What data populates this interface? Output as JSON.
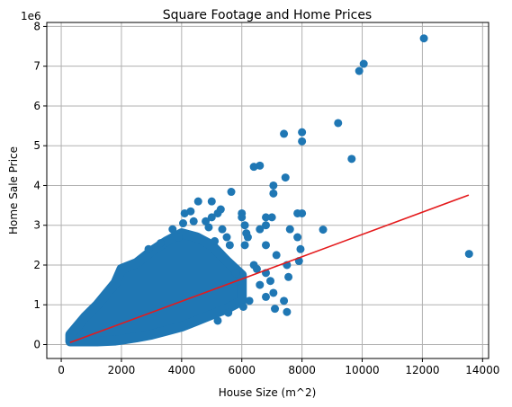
{
  "chart_data": {
    "type": "scatter",
    "title": "Square Footage and Home Prices",
    "xlabel": "House Size (m^2)",
    "ylabel": "Home Sale Price",
    "y_offset_label": "1e6",
    "xlim": [
      -480,
      14200
    ],
    "ylim": [
      -0.35,
      8.1
    ],
    "y_scale": 1000000,
    "xticks": [
      0,
      2000,
      4000,
      6000,
      8000,
      10000,
      12000,
      14000
    ],
    "yticks": [
      0,
      1,
      2,
      3,
      4,
      5,
      6,
      7,
      8
    ],
    "grid": true,
    "colors": {
      "points": "#1f77b4",
      "fit_line": "#e41a1c"
    },
    "fit_line": {
      "x": [
        290,
        13540
      ],
      "y": [
        0.05,
        3.76
      ]
    },
    "dense_cloud_bands": [
      {
        "x": 300,
        "y_low": 0.08,
        "y_high": 0.25
      },
      {
        "x": 800,
        "y_low": 0.08,
        "y_high": 0.7
      },
      {
        "x": 1200,
        "y_low": 0.08,
        "y_high": 1.0
      },
      {
        "x": 1800,
        "y_low": 0.1,
        "y_high": 1.55
      },
      {
        "x": 2000,
        "y_low": 0.12,
        "y_high": 1.9
      },
      {
        "x": 2500,
        "y_low": 0.18,
        "y_high": 2.05
      },
      {
        "x": 3000,
        "y_low": 0.25,
        "y_high": 2.35
      },
      {
        "x": 3500,
        "y_low": 0.35,
        "y_high": 2.6
      },
      {
        "x": 4000,
        "y_low": 0.45,
        "y_high": 2.8
      },
      {
        "x": 4500,
        "y_low": 0.6,
        "y_high": 2.7
      },
      {
        "x": 5000,
        "y_low": 0.75,
        "y_high": 2.5
      },
      {
        "x": 5500,
        "y_low": 0.9,
        "y_high": 2.1
      },
      {
        "x": 6000,
        "y_low": 1.1,
        "y_high": 1.75
      }
    ],
    "points": [
      {
        "x": 12050,
        "y": 7.7
      },
      {
        "x": 10050,
        "y": 7.06
      },
      {
        "x": 9900,
        "y": 6.88
      },
      {
        "x": 9200,
        "y": 5.57
      },
      {
        "x": 8000,
        "y": 5.34
      },
      {
        "x": 7400,
        "y": 5.3
      },
      {
        "x": 8000,
        "y": 5.11
      },
      {
        "x": 9650,
        "y": 4.67
      },
      {
        "x": 6600,
        "y": 4.5
      },
      {
        "x": 6400,
        "y": 4.47
      },
      {
        "x": 7450,
        "y": 4.2
      },
      {
        "x": 7050,
        "y": 4.0
      },
      {
        "x": 7050,
        "y": 3.8
      },
      {
        "x": 5000,
        "y": 3.6
      },
      {
        "x": 5650,
        "y": 3.84
      },
      {
        "x": 4550,
        "y": 3.6
      },
      {
        "x": 4300,
        "y": 3.35
      },
      {
        "x": 4100,
        "y": 3.3
      },
      {
        "x": 5300,
        "y": 3.4
      },
      {
        "x": 6000,
        "y": 3.3
      },
      {
        "x": 7850,
        "y": 3.3
      },
      {
        "x": 8000,
        "y": 3.3
      },
      {
        "x": 6000,
        "y": 3.2
      },
      {
        "x": 6800,
        "y": 3.2
      },
      {
        "x": 7000,
        "y": 3.2
      },
      {
        "x": 6800,
        "y": 3.0
      },
      {
        "x": 6600,
        "y": 2.9
      },
      {
        "x": 8700,
        "y": 2.89
      },
      {
        "x": 7600,
        "y": 2.9
      },
      {
        "x": 7850,
        "y": 2.7
      },
      {
        "x": 6200,
        "y": 2.7
      },
      {
        "x": 6800,
        "y": 2.5
      },
      {
        "x": 7150,
        "y": 2.25
      },
      {
        "x": 13550,
        "y": 2.28
      },
      {
        "x": 7950,
        "y": 2.4
      },
      {
        "x": 7500,
        "y": 2.0
      },
      {
        "x": 7900,
        "y": 2.1
      },
      {
        "x": 6400,
        "y": 2.0
      },
      {
        "x": 6500,
        "y": 1.9
      },
      {
        "x": 6800,
        "y": 1.8
      },
      {
        "x": 7550,
        "y": 1.7
      },
      {
        "x": 7050,
        "y": 1.3
      },
      {
        "x": 7400,
        "y": 1.1
      },
      {
        "x": 7100,
        "y": 0.9
      },
      {
        "x": 7500,
        "y": 0.82
      },
      {
        "x": 6250,
        "y": 1.1
      },
      {
        "x": 6600,
        "y": 1.5
      },
      {
        "x": 6800,
        "y": 1.2
      },
      {
        "x": 6950,
        "y": 1.6
      },
      {
        "x": 5800,
        "y": 1.8
      },
      {
        "x": 5900,
        "y": 1.6
      },
      {
        "x": 5550,
        "y": 0.8
      },
      {
        "x": 5200,
        "y": 0.6
      },
      {
        "x": 6050,
        "y": 0.95
      },
      {
        "x": 4800,
        "y": 3.1
      },
      {
        "x": 4050,
        "y": 3.05
      },
      {
        "x": 3700,
        "y": 2.9
      },
      {
        "x": 6100,
        "y": 2.5
      },
      {
        "x": 5500,
        "y": 2.7
      },
      {
        "x": 5600,
        "y": 2.5
      },
      {
        "x": 5100,
        "y": 2.6
      },
      {
        "x": 4900,
        "y": 2.95
      },
      {
        "x": 5350,
        "y": 2.9
      },
      {
        "x": 4400,
        "y": 3.1
      },
      {
        "x": 3900,
        "y": 2.7
      },
      {
        "x": 3300,
        "y": 2.55
      },
      {
        "x": 2900,
        "y": 2.4
      },
      {
        "x": 5000,
        "y": 3.2
      },
      {
        "x": 6100,
        "y": 3.0
      },
      {
        "x": 5200,
        "y": 3.3
      },
      {
        "x": 6150,
        "y": 2.8
      }
    ]
  }
}
